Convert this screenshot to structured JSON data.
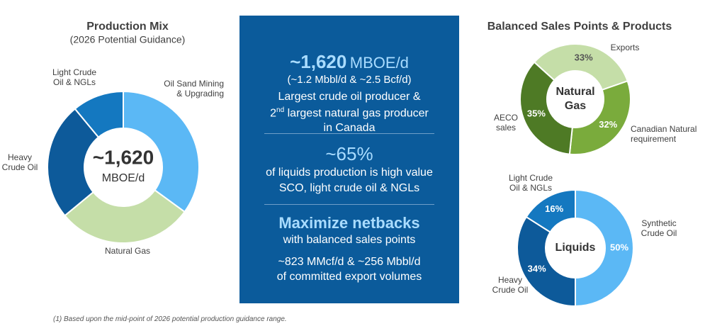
{
  "chart_data": [
    {
      "type": "pie",
      "title": "Production Mix",
      "subtitle": "(2026 Potential Guidance)",
      "categories": [
        "Oil Sand Mining\n& Upgrading",
        "Natural Gas",
        "Heavy\nCrude Oil",
        "Light Crude\nOil & NGLs"
      ],
      "values": [
        35,
        29,
        25,
        11
      ],
      "colors": [
        "#5bb8f5",
        "#c5dea8",
        "#0d5a9a",
        "#1478c0"
      ],
      "center_label": "~1,620",
      "center_sublabel": "MBOE/d"
    },
    {
      "type": "pie",
      "title": "Balanced Sales Points & Products",
      "categories": [
        "Exports",
        "Canadian Natural\nrequirement",
        "AECO\nsales"
      ],
      "values": [
        33,
        32,
        35
      ],
      "value_labels": [
        "33%",
        "32%",
        "35%"
      ],
      "colors": [
        "#c5dea8",
        "#7aab3c",
        "#4e7a25"
      ],
      "center_label": "Natural\nGas"
    },
    {
      "type": "pie",
      "categories": [
        "Synthetic\nCrude Oil",
        "Heavy\nCrude Oil",
        "Light Crude\nOil & NGLs"
      ],
      "values": [
        50,
        34,
        16
      ],
      "value_labels": [
        "50%",
        "34%",
        "16%"
      ],
      "colors": [
        "#5bb8f5",
        "#0d5a9a",
        "#1478c0"
      ],
      "center_label": "Liquids"
    }
  ],
  "panel": {
    "headline": "~1,620",
    "headline_unit": "MBOE/d",
    "headline_note": "(~1.2 Mbbl/d & ~2.5 Bcf/d)",
    "line1": "Largest crude oil producer &",
    "line2_num": "2",
    "line2_sup": "nd",
    "line2_rest": " largest natural gas producer",
    "line3": "in Canada",
    "stat": "~65%",
    "stat_line1": "of liquids production is high value",
    "stat_line2": "SCO, light crude oil & NGLs",
    "heading": "Maximize netbacks",
    "heading_sub": "with balanced sales points",
    "export_line1": "~823 MMcf/d & ~256 Mbbl/d",
    "export_line2": "of committed export volumes"
  },
  "footnote": "(1) Based upon the mid-point of 2026 potential production guidance range."
}
